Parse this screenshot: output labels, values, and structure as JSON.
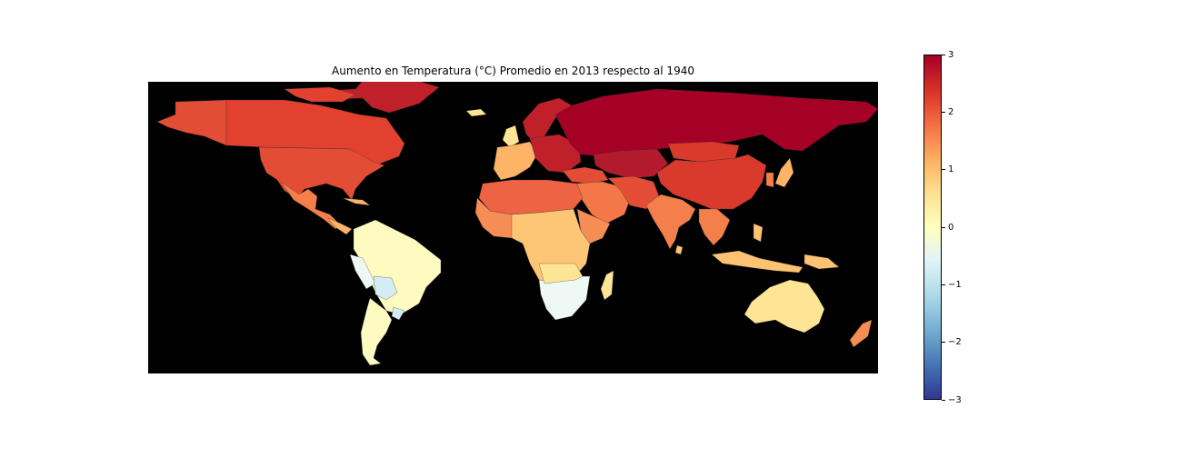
{
  "map": {
    "title": "Aumento en Temperatura (°C) Promedio en 2013 respecto al 1940",
    "ocean_color": "#000000",
    "colormap": "RdYlBu_r",
    "regions": [
      {
        "name": "Canada",
        "value": 2.2,
        "color": "#e2412f"
      },
      {
        "name": "United States",
        "value": 2.0,
        "color": "#e34d35"
      },
      {
        "name": "Mexico",
        "value": 1.6,
        "color": "#f47f4b"
      },
      {
        "name": "Greenland",
        "value": 2.6,
        "color": "#c0202a"
      },
      {
        "name": "Brazil",
        "value": 0.1,
        "color": "#fefbc1"
      },
      {
        "name": "Argentina",
        "value": 0.1,
        "color": "#fefbc1"
      },
      {
        "name": "Bolivia",
        "value": -0.5,
        "color": "#d4ecf3"
      },
      {
        "name": "Europe West",
        "value": 1.3,
        "color": "#fdb466"
      },
      {
        "name": "Russia",
        "value": 3.0,
        "color": "#a50026"
      },
      {
        "name": "China",
        "value": 2.2,
        "color": "#d93a2c"
      },
      {
        "name": "North Africa",
        "value": 1.9,
        "color": "#ee6343"
      },
      {
        "name": "Central Africa",
        "value": 1.0,
        "color": "#fdc674"
      },
      {
        "name": "Southern Africa",
        "value": -0.2,
        "color": "#eef8f5"
      },
      {
        "name": "India",
        "value": 1.6,
        "color": "#f47f4b"
      },
      {
        "name": "Middle East",
        "value": 1.7,
        "color": "#f37749"
      },
      {
        "name": "Australia",
        "value": 0.8,
        "color": "#fee595"
      },
      {
        "name": "Southeast Asia",
        "value": 1.1,
        "color": "#fdc372"
      }
    ]
  },
  "colorbar": {
    "min": -3,
    "max": 3,
    "ticks": [
      "−3",
      "−2",
      "−1",
      "0",
      "1",
      "2",
      "3"
    ]
  }
}
